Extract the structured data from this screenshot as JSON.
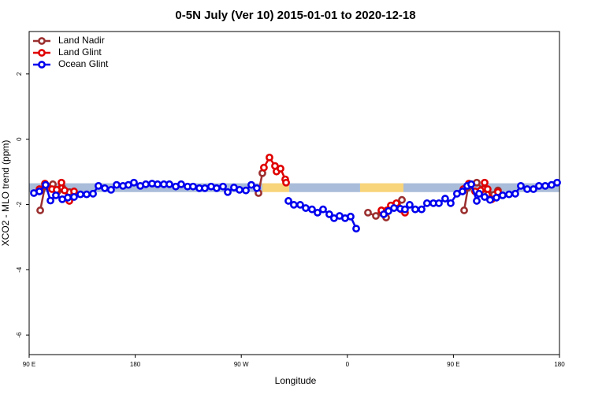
{
  "chart_data": {
    "type": "line",
    "title": "0-5N July (Ver 10)   2015-01-01 to 2020-12-18",
    "xlabel": "Longitude",
    "ylabel": "XCO2 - MLO trend (ppm)",
    "xlim": [
      90,
      540
    ],
    "ylim": [
      -6.6,
      3.3
    ],
    "xticks": [
      {
        "value": 90,
        "label": "90 E"
      },
      180,
      {
        "value": 270,
        "label": "90 W"
      },
      {
        "value": 360,
        "label": "0"
      },
      {
        "value": 450,
        "label": "90 E"
      },
      {
        "value": 540,
        "label": "180"
      }
    ],
    "yticks": [
      2,
      0,
      -2,
      -4,
      -6
    ],
    "legend": "top-left",
    "band": {
      "ylim": [
        -1.62,
        -1.35
      ],
      "segments": [
        {
          "xlim": [
            90,
            287.9
          ],
          "color": "#a9bcd9"
        },
        {
          "xlim": [
            287.9,
            310.6
          ],
          "color": "#f8d47a"
        },
        {
          "xlim": [
            310.6,
            370.8
          ],
          "color": "#a9bcd9"
        },
        {
          "xlim": [
            370.8,
            407.6
          ],
          "color": "#f8d47a"
        },
        {
          "xlim": [
            407.6,
            540
          ],
          "color": "#a9bcd9"
        }
      ]
    },
    "series": [
      {
        "name": "Land Nadir",
        "color": "#9b2f2f",
        "x": [
          99.4,
          103.4,
          110.1,
          114.1,
          118.1,
          124.1,
          null,
          284.6,
          287.9,
          null,
          377.5,
          384.2,
          388.9,
          392.9,
          397.6,
          402.2,
          406.3,
          null,
          459.1,
          462.4,
          469.8,
          475.1,
          479.8,
          487.8
        ],
        "values": [
          -2.18,
          -1.45,
          -1.38,
          -1.6,
          -1.48,
          -1.62,
          null,
          -1.65,
          -1.04,
          null,
          -2.25,
          -2.35,
          -2.25,
          -2.4,
          -2.06,
          -1.99,
          -1.86,
          null,
          -2.18,
          -1.48,
          -1.33,
          -1.53,
          -1.67,
          -1.57
        ]
      },
      {
        "name": "Land Glint",
        "color": "#e00000",
        "x": [
          98.7,
          103.4,
          109.4,
          113.4,
          117.4,
          120.1,
          124.1,
          128.1,
          null,
          289.2,
          293.9,
          298.6,
          299.9,
          303.3,
          307.3,
          308.0,
          null,
          388.9,
          393.6,
          396.9,
          401.6,
          405.6,
          408.9,
          null,
          458.4,
          463.1,
          468.4,
          473.1,
          476.5,
          479.1,
          482.5,
          487.8
        ],
        "values": [
          -1.53,
          -1.36,
          -1.53,
          -1.55,
          -1.33,
          -1.57,
          -1.89,
          -1.6,
          null,
          -0.87,
          -0.56,
          -0.82,
          -0.99,
          -0.9,
          -1.23,
          -1.33,
          null,
          -2.18,
          -2.18,
          -2.03,
          -1.96,
          -2.15,
          -2.25,
          null,
          -1.53,
          -1.36,
          -1.6,
          -1.57,
          -1.33,
          -1.53,
          -1.84,
          -1.62
        ]
      },
      {
        "name": "Ocean Glint",
        "color": "#0000ee",
        "x": [
          94.0,
          98.7,
          104.0,
          108.1,
          112.7,
          118.1,
          122.8,
          128.1,
          133.5,
          138.8,
          144.2,
          148.8,
          154.2,
          159.5,
          164.2,
          169.6,
          174.2,
          178.9,
          184.3,
          189.0,
          194.3,
          199.0,
          204.3,
          209.0,
          214.4,
          219.0,
          224.4,
          229.1,
          234.4,
          239.1,
          244.4,
          249.1,
          254.5,
          258.5,
          263.8,
          268.5,
          273.9,
          278.5,
          283.2,
          null,
          310.0,
          314.6,
          320.0,
          324.7,
          330.0,
          334.7,
          339.4,
          344.7,
          348.7,
          353.4,
          358.1,
          362.8,
          367.5,
          null,
          390.9,
          394.9,
          399.6,
          404.9,
          408.9,
          412.9,
          417.6,
          423.0,
          427.6,
          433.0,
          437.7,
          443.0,
          447.7,
          453.0,
          457.7,
          461.7,
          465.1,
          469.8,
          471.8,
          476.5,
          481.1,
          486.5,
          491.8,
          497.2,
          502.5,
          507.2,
          512.6,
          517.9,
          522.6,
          527.9,
          533.3,
          538.0
        ],
        "values": [
          -1.65,
          -1.6,
          -1.4,
          -1.88,
          -1.72,
          -1.84,
          -1.79,
          -1.77,
          -1.69,
          -1.69,
          -1.67,
          -1.43,
          -1.5,
          -1.55,
          -1.4,
          -1.43,
          -1.4,
          -1.33,
          -1.43,
          -1.38,
          -1.36,
          -1.38,
          -1.38,
          -1.38,
          -1.45,
          -1.38,
          -1.45,
          -1.45,
          -1.5,
          -1.5,
          -1.45,
          -1.5,
          -1.45,
          -1.62,
          -1.48,
          -1.55,
          -1.57,
          -1.4,
          -1.5,
          null,
          -1.89,
          -2.01,
          -2.01,
          -2.11,
          -2.15,
          -2.25,
          -2.15,
          -2.3,
          -2.42,
          -2.35,
          -2.42,
          -2.37,
          -2.74,
          null,
          -2.3,
          -2.2,
          -2.11,
          -2.13,
          -2.15,
          -2.01,
          -2.15,
          -2.15,
          -1.96,
          -1.96,
          -1.96,
          -1.82,
          -1.96,
          -1.67,
          -1.6,
          -1.43,
          -1.38,
          -1.89,
          -1.67,
          -1.77,
          -1.86,
          -1.79,
          -1.72,
          -1.69,
          -1.67,
          -1.43,
          -1.53,
          -1.53,
          -1.43,
          -1.43,
          -1.4,
          -1.33
        ]
      }
    ]
  }
}
